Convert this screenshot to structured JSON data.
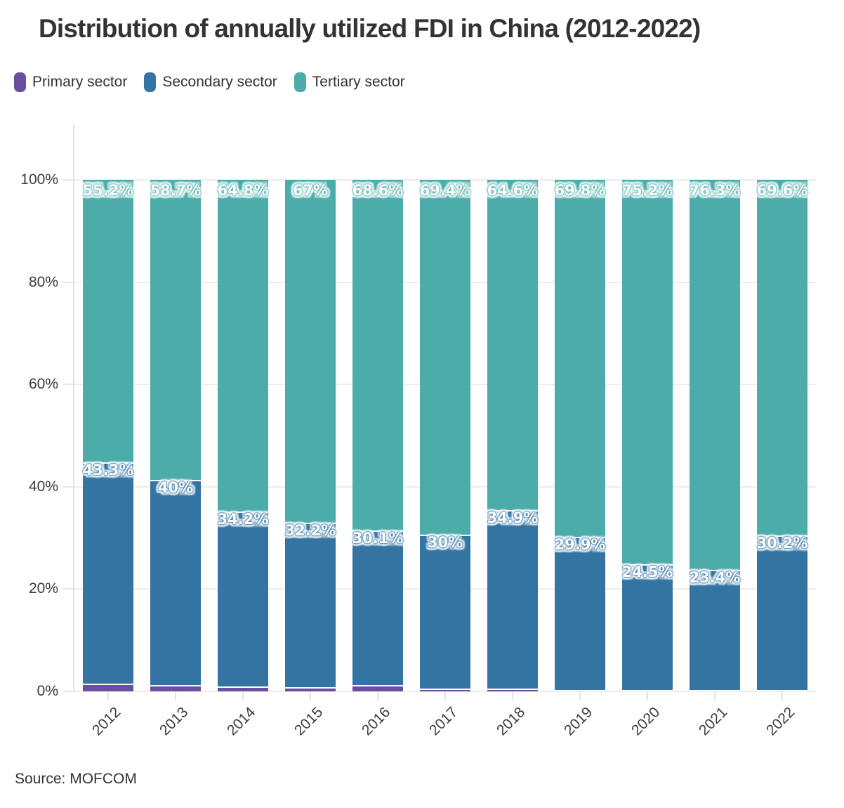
{
  "title": "Distribution of annually utilized FDI in China (2012-2022)",
  "source": "Source: MOFCOM",
  "colors": {
    "primary": "#6B4F9E",
    "secondary": "#3374A2",
    "tertiary": "#4BACA9",
    "text": "#333333",
    "grid": "#ececec"
  },
  "legend": [
    {
      "label": "Primary sector",
      "color": "#6B4F9E"
    },
    {
      "label": "Secondary sector",
      "color": "#3374A2"
    },
    {
      "label": "Tertiary sector",
      "color": "#4BACA9"
    }
  ],
  "chart_data": {
    "type": "bar",
    "stacked": true,
    "title": "Distribution of annually utilized FDI in China (2012-2022)",
    "categories": [
      "2012",
      "2013",
      "2014",
      "2015",
      "2016",
      "2017",
      "2018",
      "2019",
      "2020",
      "2021",
      "2022"
    ],
    "series": [
      {
        "name": "Primary sector",
        "color": "#6B4F9E",
        "values": [
          1.5,
          1.3,
          1.0,
          0.8,
          1.3,
          0.6,
          0.5,
          0.3,
          0.3,
          0.3,
          0.2
        ],
        "labels": [
          "",
          "",
          "",
          "",
          "",
          "",
          "",
          "",
          "",
          "",
          ""
        ]
      },
      {
        "name": "Secondary sector",
        "color": "#3374A2",
        "values": [
          43.3,
          40,
          34.2,
          32.2,
          30.1,
          30,
          34.9,
          29.9,
          24.5,
          23.4,
          30.2
        ],
        "labels": [
          "43.3%",
          "40%",
          "34.2%",
          "32.2%",
          "30.1%",
          "30%",
          "34.9%",
          "29.9%",
          "24.5%",
          "23.4%",
          "30.2%"
        ]
      },
      {
        "name": "Tertiary sector",
        "color": "#4BACA9",
        "values": [
          55.2,
          58.7,
          64.8,
          67,
          68.6,
          69.4,
          64.6,
          69.8,
          75.2,
          76.3,
          69.6
        ],
        "labels": [
          "55.2%",
          "58.7%",
          "64.8%",
          "67%",
          "68.6%",
          "69.4%",
          "64.6%",
          "69.8%",
          "75.2%",
          "76.3%",
          "69.6%"
        ]
      }
    ],
    "xlabel": "",
    "ylabel": "",
    "ylim": [
      0,
      100
    ],
    "yticks": [
      "0%",
      "20%",
      "40%",
      "60%",
      "80%",
      "100%"
    ],
    "grid": true,
    "legend_position": "top-left",
    "annotation": "Source: MOFCOM"
  }
}
